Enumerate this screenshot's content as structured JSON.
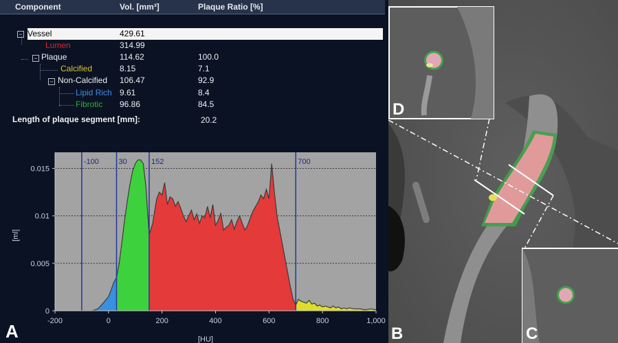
{
  "table": {
    "headers": {
      "component": "Component",
      "vol": "Vol. [mm³]",
      "ratio": "Plaque Ratio [%]"
    },
    "rows": [
      {
        "name": "Vessel",
        "vol": "429.61",
        "ratio": "",
        "color": "#000000"
      },
      {
        "name": "Lumen",
        "vol": "314.99",
        "ratio": "",
        "color": "#d8252c"
      },
      {
        "name": "Plaque",
        "vol": "114.62",
        "ratio": "100.0",
        "color": "#eef0f4"
      },
      {
        "name": "Calcified",
        "vol": "8.15",
        "ratio": "7.1",
        "color": "#d9c528"
      },
      {
        "name": "Non-Calcified",
        "vol": "106.47",
        "ratio": "92.9",
        "color": "#eef0f4"
      },
      {
        "name": "Lipid Rich",
        "vol": "9.61",
        "ratio": "8.4",
        "color": "#3a8fe0"
      },
      {
        "name": "Fibrotic",
        "vol": "96.86",
        "ratio": "84.5",
        "color": "#2fae3a"
      }
    ],
    "length_label": "Length of plaque segment [mm]:",
    "length_value": "20.2"
  },
  "panel_labels": {
    "a": "A",
    "b": "B",
    "c": "C",
    "d": "D"
  },
  "chart_data": {
    "type": "area",
    "xlabel": "[HU]",
    "ylabel": "[ml]",
    "xlim": [
      -200,
      1000
    ],
    "ylim": [
      0,
      0.0167
    ],
    "xticks": [
      -200,
      0,
      200,
      400,
      600,
      800,
      1000
    ],
    "xtick_labels": [
      "-200",
      "0",
      "200",
      "400",
      "600",
      "800",
      "1,000"
    ],
    "yticks": [
      0,
      0.005,
      0.01,
      0.015
    ],
    "ytick_labels": [
      "0",
      "0.005",
      "0.01",
      "0.015"
    ],
    "thresholds": [
      {
        "x": -100,
        "label": "-100"
      },
      {
        "x": 30,
        "label": "30"
      },
      {
        "x": 152,
        "label": "152"
      },
      {
        "x": 700,
        "label": "700"
      }
    ],
    "grid": true,
    "series": [
      {
        "color": "#3a8fe0",
        "x": [
          -100,
          -60,
          -40,
          -20,
          0,
          10,
          20,
          30
        ],
        "y": [
          0,
          0,
          0.0002,
          0.0008,
          0.0015,
          0.0022,
          0.003,
          0.0035
        ]
      },
      {
        "color": "#3ed13e",
        "x": [
          30,
          40,
          50,
          60,
          70,
          80,
          90,
          100,
          110,
          120,
          130,
          140,
          152
        ],
        "y": [
          0.0035,
          0.005,
          0.0072,
          0.0095,
          0.0115,
          0.0133,
          0.0147,
          0.0155,
          0.0159,
          0.0159,
          0.0155,
          0.013,
          0.008
        ]
      },
      {
        "color": "#e43a3a",
        "x": [
          152,
          165,
          180,
          190,
          200,
          210,
          220,
          230,
          240,
          250,
          260,
          270,
          280,
          290,
          300,
          310,
          320,
          330,
          340,
          350,
          360,
          370,
          380,
          390,
          400,
          410,
          420,
          430,
          440,
          450,
          460,
          470,
          480,
          490,
          500,
          510,
          520,
          530,
          540,
          550,
          560,
          570,
          580,
          590,
          600,
          610,
          615,
          620,
          630,
          640,
          650,
          660,
          670,
          680,
          690,
          700
        ],
        "y": [
          0.008,
          0.0092,
          0.0118,
          0.0125,
          0.0122,
          0.0135,
          0.0112,
          0.012,
          0.0118,
          0.011,
          0.0115,
          0.0108,
          0.01,
          0.0094,
          0.01,
          0.0106,
          0.0096,
          0.0102,
          0.0092,
          0.01,
          0.0098,
          0.011,
          0.0098,
          0.0112,
          0.009,
          0.0095,
          0.0103,
          0.0085,
          0.0088,
          0.009,
          0.0096,
          0.0086,
          0.0094,
          0.01,
          0.0092,
          0.0085,
          0.009,
          0.0098,
          0.0105,
          0.011,
          0.0115,
          0.0122,
          0.0118,
          0.0128,
          0.0118,
          0.0155,
          0.014,
          0.0125,
          0.01,
          0.0085,
          0.007,
          0.0055,
          0.004,
          0.0025,
          0.0012,
          0.0006
        ]
      },
      {
        "color": "#e0dc2c",
        "x": [
          700,
          710,
          720,
          730,
          740,
          750,
          760,
          770,
          780,
          790,
          800,
          810,
          820,
          830,
          840,
          850,
          860,
          870,
          880,
          890,
          900,
          920,
          940,
          960,
          980,
          1000
        ],
        "y": [
          0.0006,
          0.0012,
          0.001,
          0.0009,
          0.0008,
          0.0011,
          0.0007,
          0.0008,
          0.0005,
          0.0006,
          0.0004,
          0.0005,
          0.0004,
          0.0003,
          0.0005,
          0.0003,
          0.0004,
          0.0002,
          0.0003,
          0.0002,
          0.0003,
          0.0002,
          0.0002,
          0.0001,
          0.0002,
          0.0001
        ]
      }
    ]
  }
}
